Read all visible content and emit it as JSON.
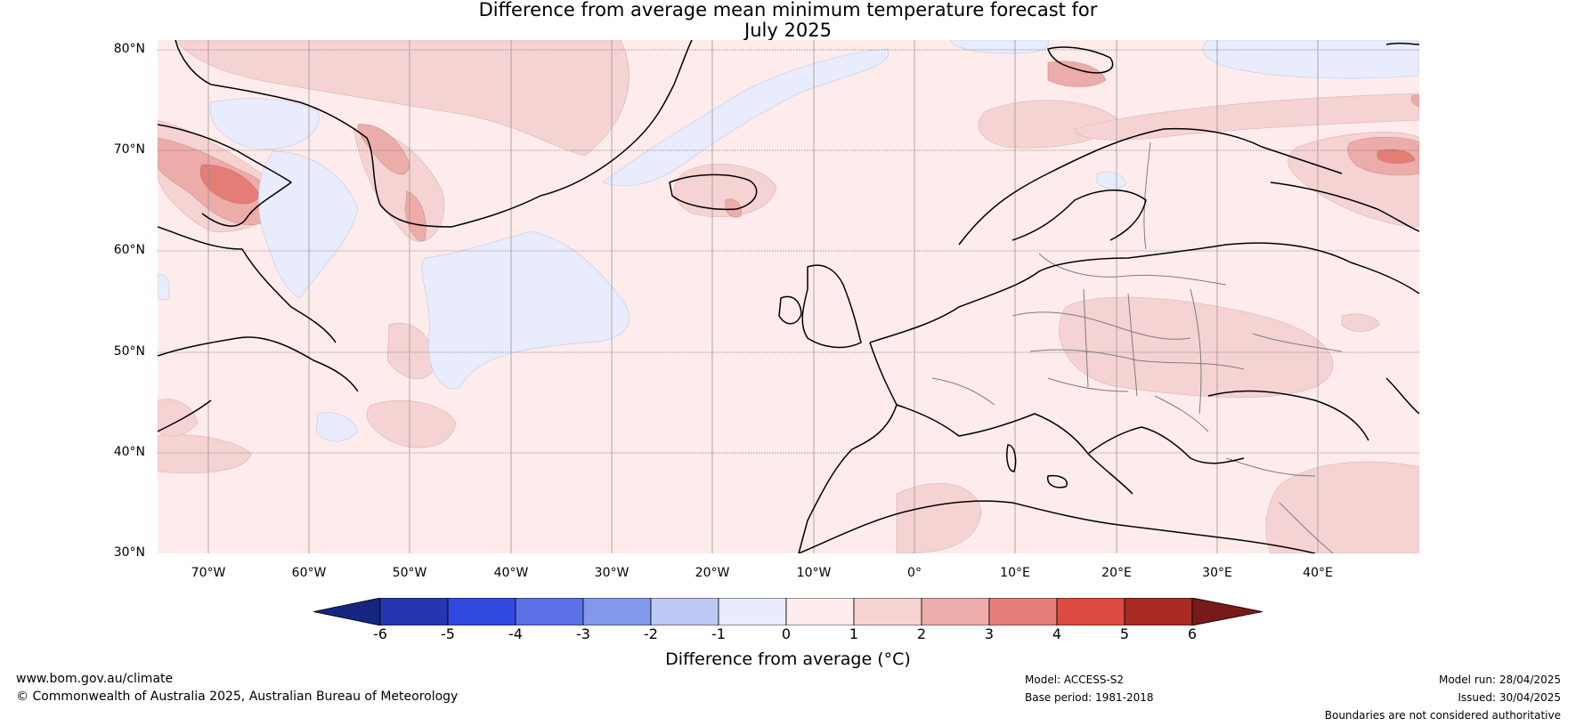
{
  "title": {
    "line1": "Difference from average mean minimum temperature forecast for",
    "line2": "July 2025"
  },
  "map": {
    "lat_labels": [
      "80°N",
      "70°N",
      "60°N",
      "50°N",
      "40°N",
      "30°N"
    ],
    "lon_labels": [
      "70°W",
      "60°W",
      "50°W",
      "40°W",
      "30°W",
      "20°W",
      "10°W",
      "0°",
      "10°E",
      "20°E",
      "30°E",
      "40°E"
    ],
    "background_color": "#fdeceb"
  },
  "colorbar": {
    "label": "Difference from average (°C)",
    "ticks": [
      "-6",
      "-5",
      "-4",
      "-3",
      "-2",
      "-1",
      "0",
      "1",
      "2",
      "3",
      "4",
      "5",
      "6"
    ],
    "colors": [
      "#16257f",
      "#2436b0",
      "#3249df",
      "#5a71e6",
      "#8397eb",
      "#bec8f4",
      "#e8ecfc",
      "#fdeceb",
      "#f5d3d3",
      "#ecaca9",
      "#e47d76",
      "#dc4a40",
      "#a92a22",
      "#781a19"
    ]
  },
  "footer": {
    "website": "www.bom.gov.au/climate",
    "copyright": "© Commonwealth of Australia 2025, Australian Bureau of Meteorology",
    "model": "Model: ACCESS-S2",
    "base_period": "Base period: 1981-2018",
    "model_run": "Model run: 28/04/2025",
    "issued": "Issued: 30/04/2025",
    "disclaimer": "Boundaries are not considered authoritative"
  }
}
